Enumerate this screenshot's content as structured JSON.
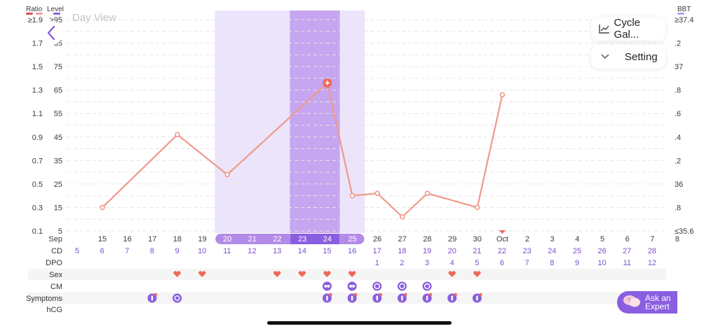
{
  "header": {
    "ratio_label": "Ratio",
    "level_label": "Level",
    "bbt_label": "BBT",
    "ratio_color": "#d94e4e",
    "ratio_color2": "#f0a0a0",
    "level_color": "#8a5ee0",
    "bbt_color": "#a8a8f0"
  },
  "day_view": "Day View",
  "buttons": {
    "cycle_gallery": "Cycle Gal...",
    "setting": "Setting",
    "ask_expert_line1": "Ask an",
    "ask_expert_line2": "Expert"
  },
  "axes": {
    "ratio_ticks": [
      "≥1.9",
      "1.7",
      "1.5",
      "1.3",
      "1.1",
      "0.9",
      "0.7",
      "0.5",
      "0.3",
      "0.1"
    ],
    "level_ticks": [
      ">95",
      "85",
      "75",
      "65",
      "55",
      "45",
      "35",
      "25",
      "15",
      "5"
    ],
    "bbt_ticks": [
      "≥37.4",
      ".2",
      "37",
      ".8",
      ".6",
      ".4",
      ".2",
      "36",
      ".8",
      "≤35.6"
    ]
  },
  "dates": {
    "month_start": "Sep",
    "days": [
      "15",
      "16",
      "17",
      "18",
      "19",
      "20",
      "21",
      "22",
      "23",
      "24",
      "25",
      "26",
      "27",
      "28",
      "29",
      "30",
      "Oct",
      "2",
      "3",
      "4",
      "5",
      "6",
      "7",
      "8"
    ]
  },
  "rows": {
    "labels": [
      "CD",
      "DPO",
      "Sex",
      "CM",
      "Symptoms",
      "hCG"
    ],
    "cd": [
      "5",
      "6",
      "7",
      "8",
      "9",
      "10",
      "11",
      "12",
      "13",
      "14",
      "15",
      "16",
      "17",
      "18",
      "19",
      "20",
      "21",
      "22",
      "23",
      "24",
      "25",
      "26",
      "27",
      "28"
    ],
    "dpo": [
      "",
      "",
      "",
      "",
      "",
      "",
      "",
      "",
      "",
      "",
      "",
      "",
      "1",
      "2",
      "3",
      "4",
      "5",
      "6",
      "7",
      "8",
      "9",
      "10",
      "11",
      "12"
    ],
    "sex": [
      false,
      false,
      false,
      false,
      true,
      true,
      false,
      false,
      true,
      true,
      true,
      true,
      false,
      false,
      false,
      true,
      true,
      false,
      false,
      false,
      false,
      false,
      false,
      false
    ],
    "cm": [
      false,
      false,
      false,
      false,
      false,
      false,
      false,
      false,
      false,
      false,
      "egg",
      "egg",
      "watery",
      "watery",
      "watery",
      false,
      false,
      false,
      false,
      false,
      false,
      false,
      false,
      false
    ],
    "symptoms": [
      false,
      false,
      false,
      "symptom-dot",
      "swirl",
      false,
      false,
      false,
      false,
      false,
      "symptom-dot",
      "symptom-dot",
      "symptom-dot",
      "symptom-dot",
      "symptom-dot",
      "symptom-dot",
      "symptom-dot",
      false,
      false,
      false,
      false,
      false,
      false,
      false
    ]
  },
  "chart_data": {
    "type": "line",
    "title": "",
    "ylabel": "Level",
    "ylim": [
      5,
      95
    ],
    "x": [
      "Sep 15",
      "Sep 18",
      "Sep 20",
      "Sep 24",
      "Sep 25",
      "Sep 26",
      "Sep 27",
      "Sep 28",
      "Sep 30",
      "Oct 1"
    ],
    "series": [
      {
        "values": [
          15,
          46,
          29,
          68,
          20,
          21,
          11,
          21,
          15,
          63
        ]
      }
    ],
    "fertile_window": [
      "Sep 20",
      "Sep 25"
    ],
    "peak_days": [
      "Sep 23",
      "Sep 24"
    ],
    "peak_point": "Sep 24",
    "line_color": "#f0998a",
    "window_color": "#ece4fb",
    "peak_color": "#c6a6f0"
  }
}
